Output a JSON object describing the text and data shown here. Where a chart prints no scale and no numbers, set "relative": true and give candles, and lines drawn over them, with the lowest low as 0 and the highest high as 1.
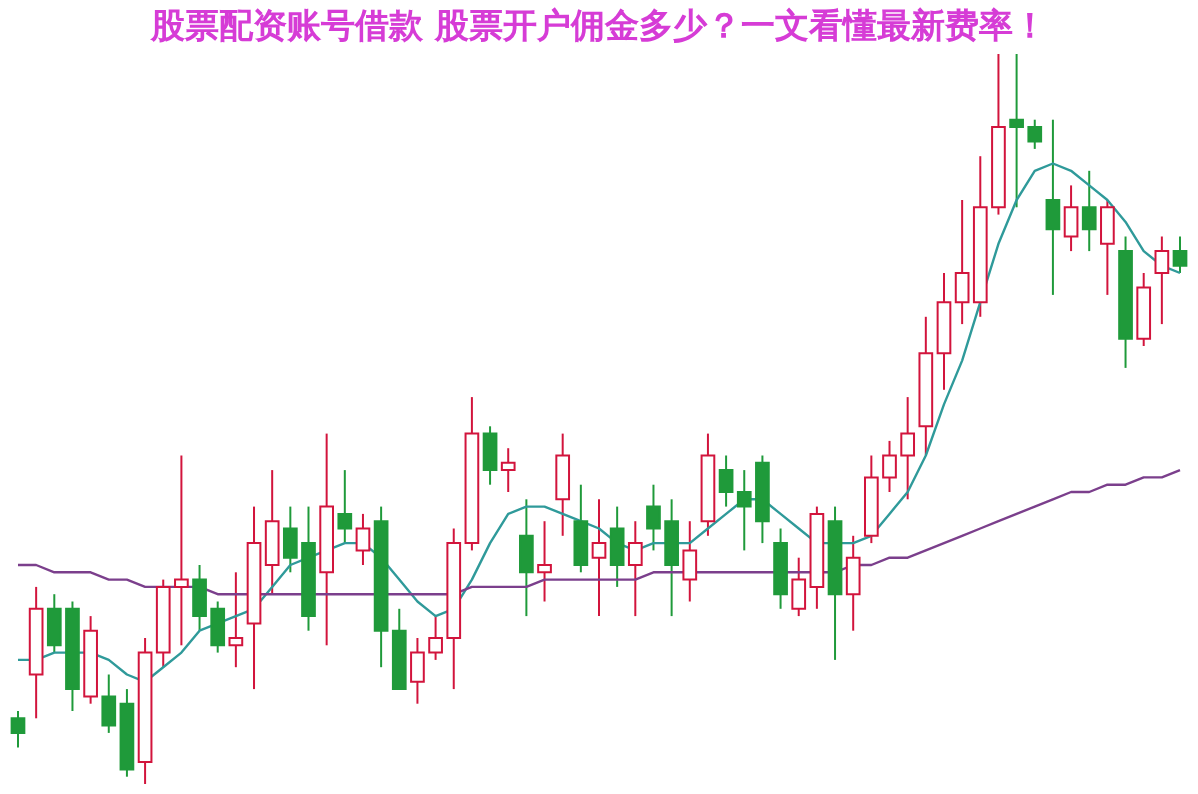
{
  "chart_data": {
    "type": "candlestick",
    "title": "股票配资账号借款 股票开户佣金多少？一文看懂最新费率！",
    "relative": true,
    "categories": [
      null,
      null,
      null,
      null,
      null,
      null,
      null,
      null,
      null,
      null,
      null,
      null,
      null,
      null,
      null,
      null,
      null,
      null,
      null,
      null,
      null,
      null,
      null,
      null,
      null,
      null,
      null,
      null,
      null,
      null,
      null,
      null,
      null,
      null,
      null,
      null,
      null,
      null,
      null,
      null,
      null,
      null,
      null,
      null,
      null,
      null,
      null,
      null,
      null,
      null,
      null,
      null,
      null,
      null,
      null,
      null,
      null,
      null,
      null,
      null,
      null,
      null,
      null,
      null,
      null
    ],
    "ohlc": [
      [
        0.09,
        0.1,
        0.05,
        0.07
      ],
      [
        0.15,
        0.27,
        0.09,
        0.24
      ],
      [
        0.24,
        0.26,
        0.18,
        0.19
      ],
      [
        0.24,
        0.25,
        0.1,
        0.13
      ],
      [
        0.12,
        0.23,
        0.11,
        0.21
      ],
      [
        0.12,
        0.15,
        0.07,
        0.08
      ],
      [
        0.11,
        0.13,
        0.01,
        0.02
      ],
      [
        0.03,
        0.2,
        0,
        0.18
      ],
      [
        0.18,
        0.28,
        0.16,
        0.27
      ],
      [
        0.27,
        0.45,
        0.19,
        0.28
      ],
      [
        0.28,
        0.3,
        0.21,
        0.23
      ],
      [
        0.24,
        0.25,
        0.18,
        0.19
      ],
      [
        0.19,
        0.29,
        0.16,
        0.2
      ],
      [
        0.22,
        0.38,
        0.13,
        0.33
      ],
      [
        0.3,
        0.43,
        0.26,
        0.36
      ],
      [
        0.35,
        0.38,
        0.29,
        0.31
      ],
      [
        0.33,
        0.38,
        0.21,
        0.23
      ],
      [
        0.29,
        0.48,
        0.19,
        0.38
      ],
      [
        0.37,
        0.43,
        0.33,
        0.35
      ],
      [
        0.32,
        0.37,
        0.3,
        0.35
      ],
      [
        0.36,
        0.38,
        0.16,
        0.21
      ],
      [
        0.21,
        0.24,
        0.13,
        0.13
      ],
      [
        0.14,
        0.2,
        0.11,
        0.18
      ],
      [
        0.18,
        0.23,
        0.17,
        0.2
      ],
      [
        0.2,
        0.35,
        0.13,
        0.33
      ],
      [
        0.33,
        0.53,
        0.32,
        0.48
      ],
      [
        0.48,
        0.49,
        0.41,
        0.43
      ],
      [
        0.43,
        0.46,
        0.4,
        0.44
      ],
      [
        0.34,
        0.39,
        0.23,
        0.29
      ],
      [
        0.29,
        0.36,
        0.25,
        0.3
      ],
      [
        0.39,
        0.48,
        0.34,
        0.45
      ],
      [
        0.36,
        0.41,
        0.29,
        0.3
      ],
      [
        0.31,
        0.39,
        0.23,
        0.33
      ],
      [
        0.35,
        0.38,
        0.27,
        0.3
      ],
      [
        0.3,
        0.36,
        0.23,
        0.33
      ],
      [
        0.38,
        0.41,
        0.32,
        0.35
      ],
      [
        0.36,
        0.39,
        0.23,
        0.3
      ],
      [
        0.28,
        0.36,
        0.25,
        0.32
      ],
      [
        0.36,
        0.48,
        0.34,
        0.45
      ],
      [
        0.43,
        0.45,
        0.38,
        0.4
      ],
      [
        0.4,
        0.43,
        0.32,
        0.38
      ],
      [
        0.44,
        0.45,
        0.33,
        0.36
      ],
      [
        0.33,
        0.35,
        0.24,
        0.26
      ],
      [
        0.24,
        0.31,
        0.23,
        0.28
      ],
      [
        0.27,
        0.38,
        0.24,
        0.37
      ],
      [
        0.36,
        0.38,
        0.17,
        0.26
      ],
      [
        0.26,
        0.34,
        0.21,
        0.31
      ],
      [
        0.34,
        0.45,
        0.33,
        0.42
      ],
      [
        0.42,
        0.47,
        0.4,
        0.45
      ],
      [
        0.45,
        0.53,
        0.39,
        0.48
      ],
      [
        0.49,
        0.64,
        0.45,
        0.59
      ],
      [
        0.59,
        0.7,
        0.54,
        0.66
      ],
      [
        0.66,
        0.8,
        0.63,
        0.7
      ],
      [
        0.66,
        0.86,
        0.64,
        0.79
      ],
      [
        0.79,
        1,
        0.78,
        0.9
      ],
      [
        0.91,
        1,
        0.79,
        0.9
      ],
      [
        0.9,
        0.91,
        0.87,
        0.88
      ],
      [
        0.8,
        0.91,
        0.67,
        0.76
      ],
      [
        0.75,
        0.82,
        0.73,
        0.79
      ],
      [
        0.79,
        0.84,
        0.73,
        0.76
      ],
      [
        0.74,
        0.8,
        0.67,
        0.79
      ],
      [
        0.73,
        0.75,
        0.57,
        0.61
      ],
      [
        0.61,
        0.7,
        0.6,
        0.68
      ],
      [
        0.7,
        0.75,
        0.63,
        0.73
      ],
      [
        0.73,
        0.75,
        0.7,
        0.71
      ]
    ],
    "colors": [
      "#1f9a3a",
      "#d2143c",
      "#1f9a3a",
      "#1f9a3a",
      "#d2143c",
      "#1f9a3a",
      "#1f9a3a",
      "#d2143c",
      "#d2143c",
      "#d2143c",
      "#1f9a3a",
      "#1f9a3a",
      "#d2143c",
      "#d2143c",
      "#d2143c",
      "#1f9a3a",
      "#1f9a3a",
      "#d2143c",
      "#1f9a3a",
      "#d2143c",
      "#1f9a3a",
      "#1f9a3a",
      "#d2143c",
      "#d2143c",
      "#d2143c",
      "#d2143c",
      "#1f9a3a",
      "#d2143c",
      "#1f9a3a",
      "#d2143c",
      "#d2143c",
      "#1f9a3a",
      "#d2143c",
      "#1f9a3a",
      "#d2143c",
      "#1f9a3a",
      "#1f9a3a",
      "#d2143c",
      "#d2143c",
      "#1f9a3a",
      "#1f9a3a",
      "#1f9a3a",
      "#1f9a3a",
      "#d2143c",
      "#d2143c",
      "#1f9a3a",
      "#d2143c",
      "#d2143c",
      "#d2143c",
      "#d2143c",
      "#d2143c",
      "#d2143c",
      "#d2143c",
      "#d2143c",
      "#d2143c",
      "#1f9a3a",
      "#1f9a3a",
      "#1f9a3a",
      "#d2143c",
      "#1f9a3a",
      "#d2143c",
      "#1f9a3a",
      "#d2143c",
      "#d2143c",
      "#1f9a3a"
    ],
    "series": [
      {
        "type": "line",
        "color": "#2f9a9a",
        "values": [
          0.17,
          0.17,
          0.18,
          0.18,
          0.18,
          0.17,
          0.15,
          0.14,
          0.16,
          0.18,
          0.21,
          0.22,
          0.23,
          0.24,
          0.27,
          0.3,
          0.31,
          0.32,
          0.33,
          0.33,
          0.31,
          0.28,
          0.25,
          0.23,
          0.24,
          0.28,
          0.33,
          0.37,
          0.38,
          0.38,
          0.37,
          0.36,
          0.35,
          0.33,
          0.32,
          0.33,
          0.33,
          0.33,
          0.35,
          0.37,
          0.39,
          0.39,
          0.37,
          0.35,
          0.33,
          0.33,
          0.33,
          0.34,
          0.37,
          0.4,
          0.45,
          0.52,
          0.58,
          0.66,
          0.74,
          0.8,
          0.84,
          0.85,
          0.84,
          0.82,
          0.8,
          0.77,
          0.73,
          0.71,
          0.7
        ]
      },
      {
        "type": "line",
        "color": "#7b3f8c",
        "values": [
          0.3,
          0.3,
          0.29,
          0.29,
          0.29,
          0.28,
          0.28,
          0.27,
          0.27,
          0.27,
          0.27,
          0.26,
          0.26,
          0.26,
          0.26,
          0.26,
          0.26,
          0.26,
          0.26,
          0.26,
          0.26,
          0.26,
          0.26,
          0.26,
          0.26,
          0.27,
          0.27,
          0.27,
          0.27,
          0.28,
          0.28,
          0.28,
          0.28,
          0.28,
          0.28,
          0.29,
          0.29,
          0.29,
          0.29,
          0.29,
          0.29,
          0.29,
          0.29,
          0.29,
          0.29,
          0.29,
          0.3,
          0.3,
          0.31,
          0.31,
          0.32,
          0.33,
          0.34,
          0.35,
          0.36,
          0.37,
          0.38,
          0.39,
          0.4,
          0.4,
          0.41,
          0.41,
          0.42,
          0.42,
          0.43
        ]
      }
    ]
  }
}
